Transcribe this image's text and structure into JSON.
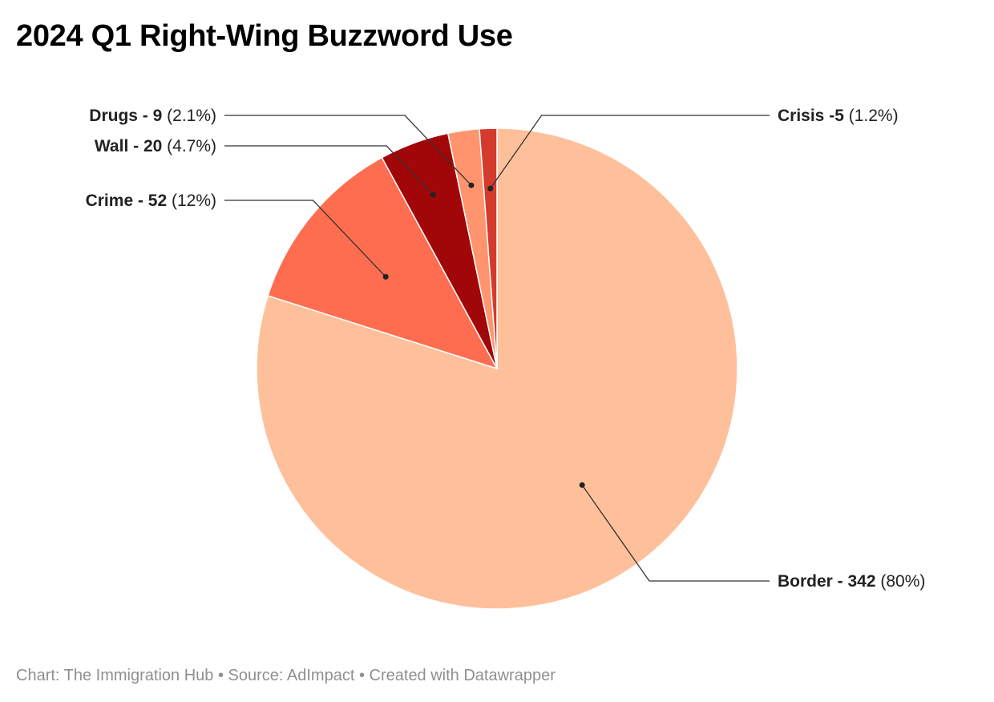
{
  "title": "2024 Q1 Right-Wing Buzzword Use",
  "footer": {
    "chart_credit": "Chart: The Immigration Hub",
    "source": "Source: AdImpact",
    "created_with": "Created with Datawrapper",
    "separator": " • "
  },
  "chart_data": {
    "type": "pie",
    "slices": [
      {
        "name": "Border",
        "label": "Border - 342",
        "value": 342,
        "percent_label": "(80%)",
        "color": "#fec09b"
      },
      {
        "name": "Crime",
        "label": "Crime - 52",
        "value": 52,
        "percent_label": "(12%)",
        "color": "#ff6d50"
      },
      {
        "name": "Wall",
        "label": "Wall - 20",
        "value": 20,
        "percent_label": "(4.7%)",
        "color": "#a10709"
      },
      {
        "name": "Drugs",
        "label": "Drugs - 9",
        "value": 9,
        "percent_label": "(2.1%)",
        "color": "#ff946e"
      },
      {
        "name": "Crisis",
        "label": "Crisis -5",
        "value": 5,
        "percent_label": "(1.2%)",
        "color": "#d43b2d"
      }
    ]
  }
}
